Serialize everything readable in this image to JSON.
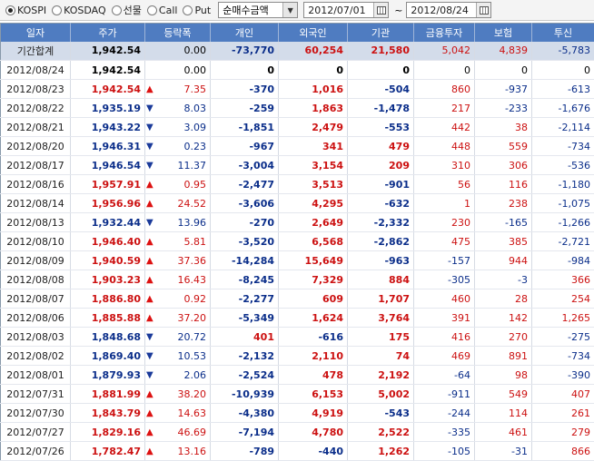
{
  "filters": {
    "markets": [
      {
        "label": "KOSPI",
        "checked": true
      },
      {
        "label": "KOSDAQ",
        "checked": false
      },
      {
        "label": "선물",
        "checked": false
      },
      {
        "label": "Call",
        "checked": false
      },
      {
        "label": "Put",
        "checked": false
      }
    ],
    "amount_select": "순매수금액",
    "date_from": "2012/07/01",
    "date_sep": "~",
    "date_to": "2012/08/24"
  },
  "colors": {
    "header_bg": "#4f7cc1",
    "up": "#cc1111",
    "down": "#0b2e8a",
    "total_row_bg": "#d3dcea"
  },
  "table": {
    "columns": [
      "일자",
      "주가",
      "등락폭",
      "개인",
      "외국인",
      "기관",
      "금융투자",
      "보험",
      "투신"
    ],
    "rows": [
      {
        "date": "기간합계",
        "price": "1,942.54",
        "dir": "none",
        "change": "0.00",
        "indiv": "-73,770",
        "foreign": "60,254",
        "inst": "21,580",
        "fin": "5,042",
        "ins": "4,839",
        "trust": "-5,783"
      },
      {
        "date": "2012/08/24",
        "price": "1,942.54",
        "dir": "none",
        "change": "0.00",
        "indiv": "0",
        "foreign": "0",
        "inst": "0",
        "fin": "0",
        "ins": "0",
        "trust": "0"
      },
      {
        "date": "2012/08/23",
        "price": "1,942.54",
        "dir": "up",
        "change": "7.35",
        "indiv": "-370",
        "foreign": "1,016",
        "inst": "-504",
        "fin": "860",
        "ins": "-937",
        "trust": "-613"
      },
      {
        "date": "2012/08/22",
        "price": "1,935.19",
        "dir": "down",
        "change": "8.03",
        "indiv": "-259",
        "foreign": "1,863",
        "inst": "-1,478",
        "fin": "217",
        "ins": "-233",
        "trust": "-1,676"
      },
      {
        "date": "2012/08/21",
        "price": "1,943.22",
        "dir": "down",
        "change": "3.09",
        "indiv": "-1,851",
        "foreign": "2,479",
        "inst": "-553",
        "fin": "442",
        "ins": "38",
        "trust": "-2,114"
      },
      {
        "date": "2012/08/20",
        "price": "1,946.31",
        "dir": "down",
        "change": "0.23",
        "indiv": "-967",
        "foreign": "341",
        "inst": "479",
        "fin": "448",
        "ins": "559",
        "trust": "-734"
      },
      {
        "date": "2012/08/17",
        "price": "1,946.54",
        "dir": "down",
        "change": "11.37",
        "indiv": "-3,004",
        "foreign": "3,154",
        "inst": "209",
        "fin": "310",
        "ins": "306",
        "trust": "-536"
      },
      {
        "date": "2012/08/16",
        "price": "1,957.91",
        "dir": "up",
        "change": "0.95",
        "indiv": "-2,477",
        "foreign": "3,513",
        "inst": "-901",
        "fin": "56",
        "ins": "116",
        "trust": "-1,180"
      },
      {
        "date": "2012/08/14",
        "price": "1,956.96",
        "dir": "up",
        "change": "24.52",
        "indiv": "-3,606",
        "foreign": "4,295",
        "inst": "-632",
        "fin": "1",
        "ins": "238",
        "trust": "-1,075"
      },
      {
        "date": "2012/08/13",
        "price": "1,932.44",
        "dir": "down",
        "change": "13.96",
        "indiv": "-270",
        "foreign": "2,649",
        "inst": "-2,332",
        "fin": "230",
        "ins": "-165",
        "trust": "-1,266"
      },
      {
        "date": "2012/08/10",
        "price": "1,946.40",
        "dir": "up",
        "change": "5.81",
        "indiv": "-3,520",
        "foreign": "6,568",
        "inst": "-2,862",
        "fin": "475",
        "ins": "385",
        "trust": "-2,721"
      },
      {
        "date": "2012/08/09",
        "price": "1,940.59",
        "dir": "up",
        "change": "37.36",
        "indiv": "-14,284",
        "foreign": "15,649",
        "inst": "-963",
        "fin": "-157",
        "ins": "944",
        "trust": "-984"
      },
      {
        "date": "2012/08/08",
        "price": "1,903.23",
        "dir": "up",
        "change": "16.43",
        "indiv": "-8,245",
        "foreign": "7,329",
        "inst": "884",
        "fin": "-305",
        "ins": "-3",
        "trust": "366"
      },
      {
        "date": "2012/08/07",
        "price": "1,886.80",
        "dir": "up",
        "change": "0.92",
        "indiv": "-2,277",
        "foreign": "609",
        "inst": "1,707",
        "fin": "460",
        "ins": "28",
        "trust": "254"
      },
      {
        "date": "2012/08/06",
        "price": "1,885.88",
        "dir": "up",
        "change": "37.20",
        "indiv": "-5,349",
        "foreign": "1,624",
        "inst": "3,764",
        "fin": "391",
        "ins": "142",
        "trust": "1,265"
      },
      {
        "date": "2012/08/03",
        "price": "1,848.68",
        "dir": "down",
        "change": "20.72",
        "indiv": "401",
        "foreign": "-616",
        "inst": "175",
        "fin": "416",
        "ins": "270",
        "trust": "-275"
      },
      {
        "date": "2012/08/02",
        "price": "1,869.40",
        "dir": "down",
        "change": "10.53",
        "indiv": "-2,132",
        "foreign": "2,110",
        "inst": "74",
        "fin": "469",
        "ins": "891",
        "trust": "-734"
      },
      {
        "date": "2012/08/01",
        "price": "1,879.93",
        "dir": "down",
        "change": "2.06",
        "indiv": "-2,524",
        "foreign": "478",
        "inst": "2,192",
        "fin": "-64",
        "ins": "98",
        "trust": "-390"
      },
      {
        "date": "2012/07/31",
        "price": "1,881.99",
        "dir": "up",
        "change": "38.20",
        "indiv": "-10,939",
        "foreign": "6,153",
        "inst": "5,002",
        "fin": "-911",
        "ins": "549",
        "trust": "407"
      },
      {
        "date": "2012/07/30",
        "price": "1,843.79",
        "dir": "up",
        "change": "14.63",
        "indiv": "-4,380",
        "foreign": "4,919",
        "inst": "-543",
        "fin": "-244",
        "ins": "114",
        "trust": "261"
      },
      {
        "date": "2012/07/27",
        "price": "1,829.16",
        "dir": "up",
        "change": "46.69",
        "indiv": "-7,194",
        "foreign": "4,780",
        "inst": "2,522",
        "fin": "-335",
        "ins": "461",
        "trust": "279"
      },
      {
        "date": "2012/07/26",
        "price": "1,782.47",
        "dir": "up",
        "change": "13.16",
        "indiv": "-789",
        "foreign": "-440",
        "inst": "1,262",
        "fin": "-105",
        "ins": "-31",
        "trust": "866"
      }
    ]
  }
}
